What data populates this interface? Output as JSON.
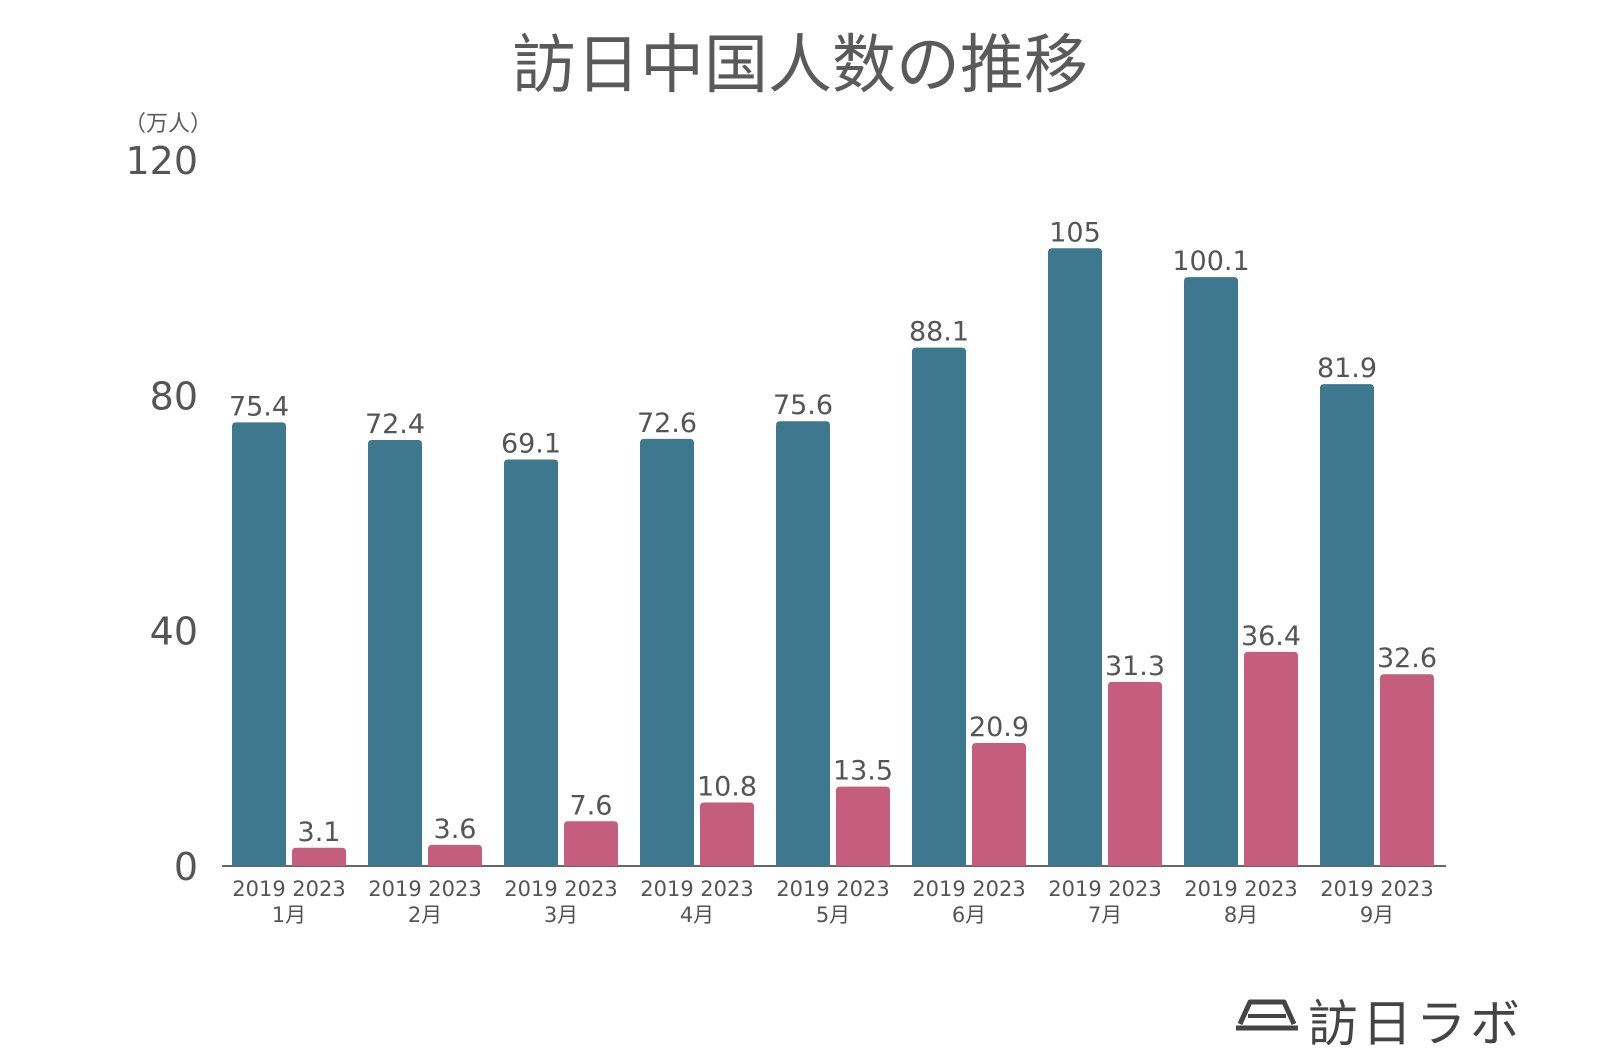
{
  "title": "訪日中国人数の推移",
  "unit_label": "（万人）",
  "logo_text": "訪日ラボ",
  "colors": {
    "series_2019": "#3d788f",
    "series_2023": "#c55d7f",
    "text": "#555555",
    "axis": "#666666"
  },
  "chart_data": {
    "type": "bar",
    "title": "訪日中国人数の推移",
    "ylabel": "（万人）",
    "ylim": [
      0,
      120
    ],
    "yticks": [
      0,
      40,
      80,
      120
    ],
    "grid": false,
    "categories": [
      "1月",
      "2月",
      "3月",
      "4月",
      "5月",
      "6月",
      "7月",
      "8月",
      "9月"
    ],
    "series": [
      {
        "name": "2019",
        "values": [
          75.4,
          72.4,
          69.1,
          72.6,
          75.6,
          88.1,
          105,
          100.1,
          81.9
        ]
      },
      {
        "name": "2023",
        "values": [
          3.1,
          3.6,
          7.6,
          10.8,
          13.5,
          20.9,
          31.3,
          36.4,
          32.6
        ]
      }
    ]
  }
}
